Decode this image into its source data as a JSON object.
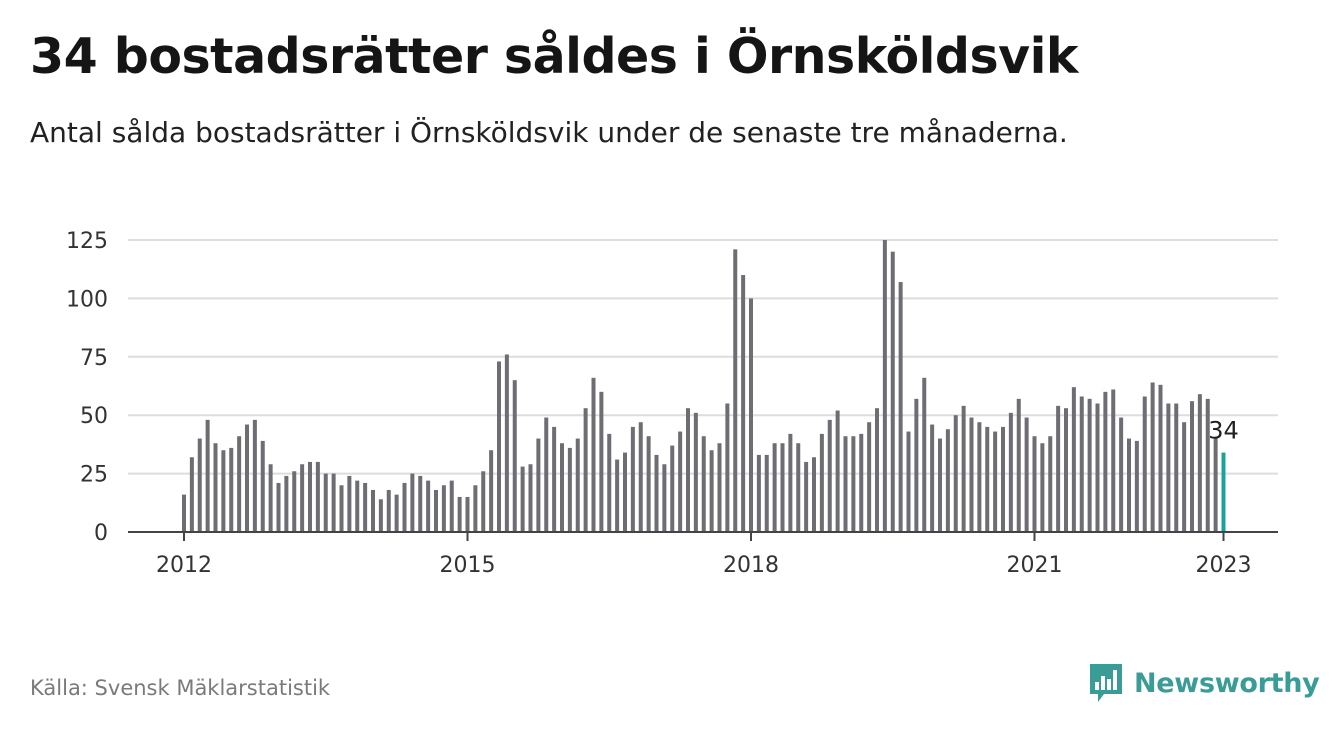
{
  "header": {
    "title": "34 bostadsrätter såldes i Örnsköldsvik",
    "subtitle": "Antal sålda bostadsrätter i Örnsköldsvik under de senaste tre månaderna."
  },
  "footer": {
    "source": "Källa: Svensk Mäklarstatistik",
    "brand": "Newsworthy"
  },
  "icons": {
    "brand_logo": "bar-chart-speech-bubble-icon"
  },
  "colors": {
    "bar": "#6d6d73",
    "highlight": "#1aa39a",
    "grid": "#dddddd",
    "axis": "#444444",
    "brand": "#3a9c96"
  },
  "chart_data": {
    "type": "bar",
    "ylim": [
      0,
      125
    ],
    "yticks": [
      0,
      25,
      50,
      75,
      100,
      125
    ],
    "xtick_labels": [
      "2012",
      "2015",
      "2018",
      "2021",
      "2023"
    ],
    "xtick_indices": [
      0,
      36,
      72,
      108,
      132
    ],
    "grid": true,
    "highlight_label": "34",
    "values": [
      16,
      32,
      40,
      48,
      38,
      35,
      36,
      41,
      46,
      48,
      39,
      29,
      21,
      24,
      26,
      29,
      30,
      30,
      25,
      25,
      20,
      24,
      22,
      21,
      18,
      14,
      18,
      16,
      21,
      25,
      24,
      22,
      18,
      20,
      22,
      15,
      15,
      20,
      26,
      35,
      73,
      76,
      65,
      28,
      29,
      40,
      49,
      45,
      38,
      36,
      40,
      53,
      66,
      60,
      42,
      31,
      34,
      45,
      47,
      41,
      33,
      29,
      37,
      43,
      53,
      51,
      41,
      35,
      38,
      55,
      121,
      110,
      100,
      33,
      33,
      38,
      38,
      42,
      38,
      30,
      32,
      42,
      48,
      52,
      41,
      41,
      42,
      47,
      53,
      125,
      120,
      107,
      43,
      57,
      66,
      46,
      40,
      44,
      50,
      54,
      49,
      47,
      45,
      43,
      45,
      51,
      57,
      49,
      41,
      38,
      41,
      54,
      53,
      62,
      58,
      57,
      55,
      60,
      61,
      49,
      40,
      39,
      58,
      64,
      63,
      55,
      55,
      47,
      56,
      59,
      57,
      40,
      34
    ]
  }
}
